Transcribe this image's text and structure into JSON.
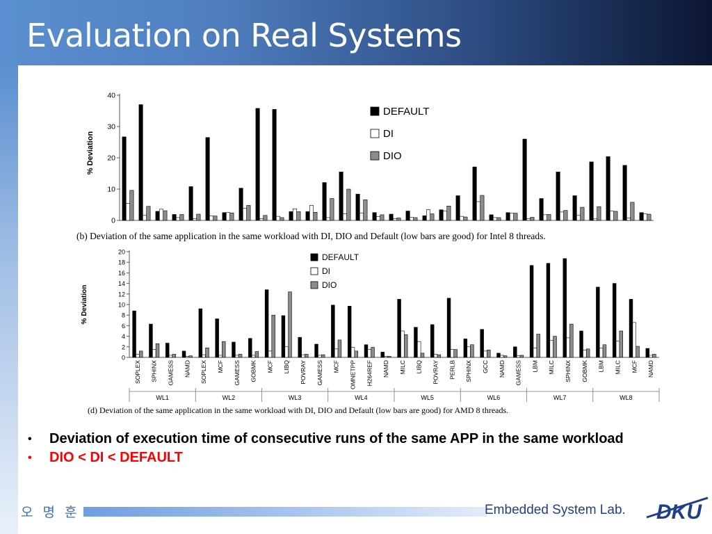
{
  "slide": {
    "title": "Evaluation on Real Systems",
    "bullets": [
      {
        "text": "Deviation of execution time of consecutive runs of the same APP in the same workload",
        "color": "#000000"
      },
      {
        "text": "DIO < DI < DEFAULT",
        "color": "#ff0000"
      }
    ],
    "footer_name": "오 명 훈",
    "footer_lab": "Embedded System Lab.",
    "logo_text": "DKU"
  },
  "chart_data": [
    {
      "type": "bar",
      "ylabel": "% Deviation",
      "ylim": [
        0,
        40
      ],
      "yticks": [
        0,
        10,
        20,
        30,
        40
      ],
      "caption": "(b) Deviation of the same application in the same workload with DI, DIO and Default (low bars are good) for Intel 8 threads.",
      "legend_position": "top-right",
      "series": [
        {
          "name": "DEFAULT",
          "color": "#000000",
          "values": [
            26.7,
            37,
            2.9,
            1.9,
            10.8,
            26.5,
            2.5,
            10.3,
            35.8,
            35.5,
            2.8,
            2.8,
            12.1,
            15.5,
            8.4,
            2.5,
            2,
            3,
            1.5,
            3.4,
            7.9,
            17.1,
            1.8,
            2.5,
            26,
            7,
            15.5,
            7.9,
            18.7,
            20.4,
            17.6,
            2.5
          ]
        },
        {
          "name": "DI",
          "color": "#ffffff",
          "values": [
            5.4,
            1.6,
            3.6,
            0.9,
            0.6,
            1.4,
            2.5,
            3.9,
            0.6,
            1.3,
            3.7,
            4.8,
            0.9,
            2.1,
            2.4,
            1.2,
            0.6,
            1,
            3.4,
            3,
            1.3,
            6,
            0.9,
            2.3,
            0.6,
            1.8,
            2.7,
            1.6,
            0.5,
            3,
            0.8,
            2.1
          ]
        },
        {
          "name": "DIO",
          "color": "#8c8c8c",
          "values": [
            9.6,
            4.5,
            3.1,
            1.9,
            2,
            1.4,
            2.4,
            4.8,
            1.6,
            0.9,
            2.8,
            2.6,
            7,
            10,
            6.6,
            1.8,
            0.8,
            0.9,
            2.1,
            4.6,
            1.1,
            8,
            0.9,
            2.3,
            1,
            1.9,
            3.2,
            4.2,
            4.4,
            2.9,
            5.8,
            2
          ]
        }
      ]
    },
    {
      "type": "bar",
      "ylabel": "% Deviation",
      "ylim": [
        0,
        20
      ],
      "yticks": [
        0,
        2,
        4,
        6,
        8,
        10,
        12,
        14,
        16,
        18,
        20
      ],
      "caption": "(d) Deviation of the same application in the same workload with DI, DIO and Default (low bars are good) for AMD 8 threads.",
      "legend_position": "top-center",
      "groups": [
        {
          "name": "WL1",
          "apps": [
            "SOPLEX",
            "SPHINX",
            "GAMESS",
            "NAMD"
          ]
        },
        {
          "name": "WL2",
          "apps": [
            "SOPLEX",
            "MCF",
            "GAMESS",
            "GOBMK"
          ]
        },
        {
          "name": "WL3",
          "apps": [
            "MCF",
            "LIBQ",
            "POVRAY",
            "GAMESS"
          ]
        },
        {
          "name": "WL4",
          "apps": [
            "MCF",
            "OMNETPP",
            "H264REF",
            "NAMD"
          ]
        },
        {
          "name": "WL5",
          "apps": [
            "MILC",
            "LIBQ",
            "POVRAY",
            "PERLB"
          ]
        },
        {
          "name": "WL6",
          "apps": [
            "SPHINX",
            "GCC",
            "NAMD",
            "GAMESS"
          ]
        },
        {
          "name": "WL7",
          "apps": [
            "LBM",
            "MILC",
            "SPHINX",
            "GOBMK"
          ]
        },
        {
          "name": "WL8",
          "apps": [
            "LBM",
            "MILC",
            "MCF",
            "NAMD"
          ]
        }
      ],
      "series": [
        {
          "name": "DEFAULT",
          "color": "#000000",
          "values": [
            8.8,
            6.3,
            2.7,
            1.2,
            9.2,
            7.3,
            2.9,
            3.6,
            12.8,
            7.9,
            3.8,
            2.5,
            9.9,
            9.7,
            2.4,
            1,
            11,
            5.7,
            6.2,
            11.2,
            3.5,
            5.3,
            0.8,
            2,
            17.4,
            17.8,
            18.7,
            5,
            13.3,
            14,
            11,
            1.7
          ]
        },
        {
          "name": "DI",
          "color": "#ffffff",
          "values": [
            0.6,
            1.5,
            0.4,
            0.2,
            0.5,
            0.4,
            0.4,
            0.4,
            1.2,
            2,
            0.5,
            0.4,
            1.6,
            1.9,
            1.5,
            0.2,
            5,
            3,
            0.6,
            1.5,
            2,
            1.2,
            0.4,
            0.3,
            1.8,
            3.2,
            3.7,
            1.4,
            1.8,
            3.1,
            6.6,
            0.4
          ]
        },
        {
          "name": "DIO",
          "color": "#8c8c8c",
          "values": [
            1.2,
            2.6,
            0.6,
            0.3,
            1.8,
            3,
            0.6,
            1.1,
            8,
            12.4,
            0.6,
            0.5,
            3.3,
            1.2,
            1.9,
            0.2,
            4.3,
            0.8,
            0.5,
            1.5,
            2.4,
            1.4,
            0.3,
            0.4,
            4.4,
            4,
            6.3,
            1.6,
            2.4,
            5,
            2.1,
            0.6
          ]
        }
      ]
    }
  ]
}
